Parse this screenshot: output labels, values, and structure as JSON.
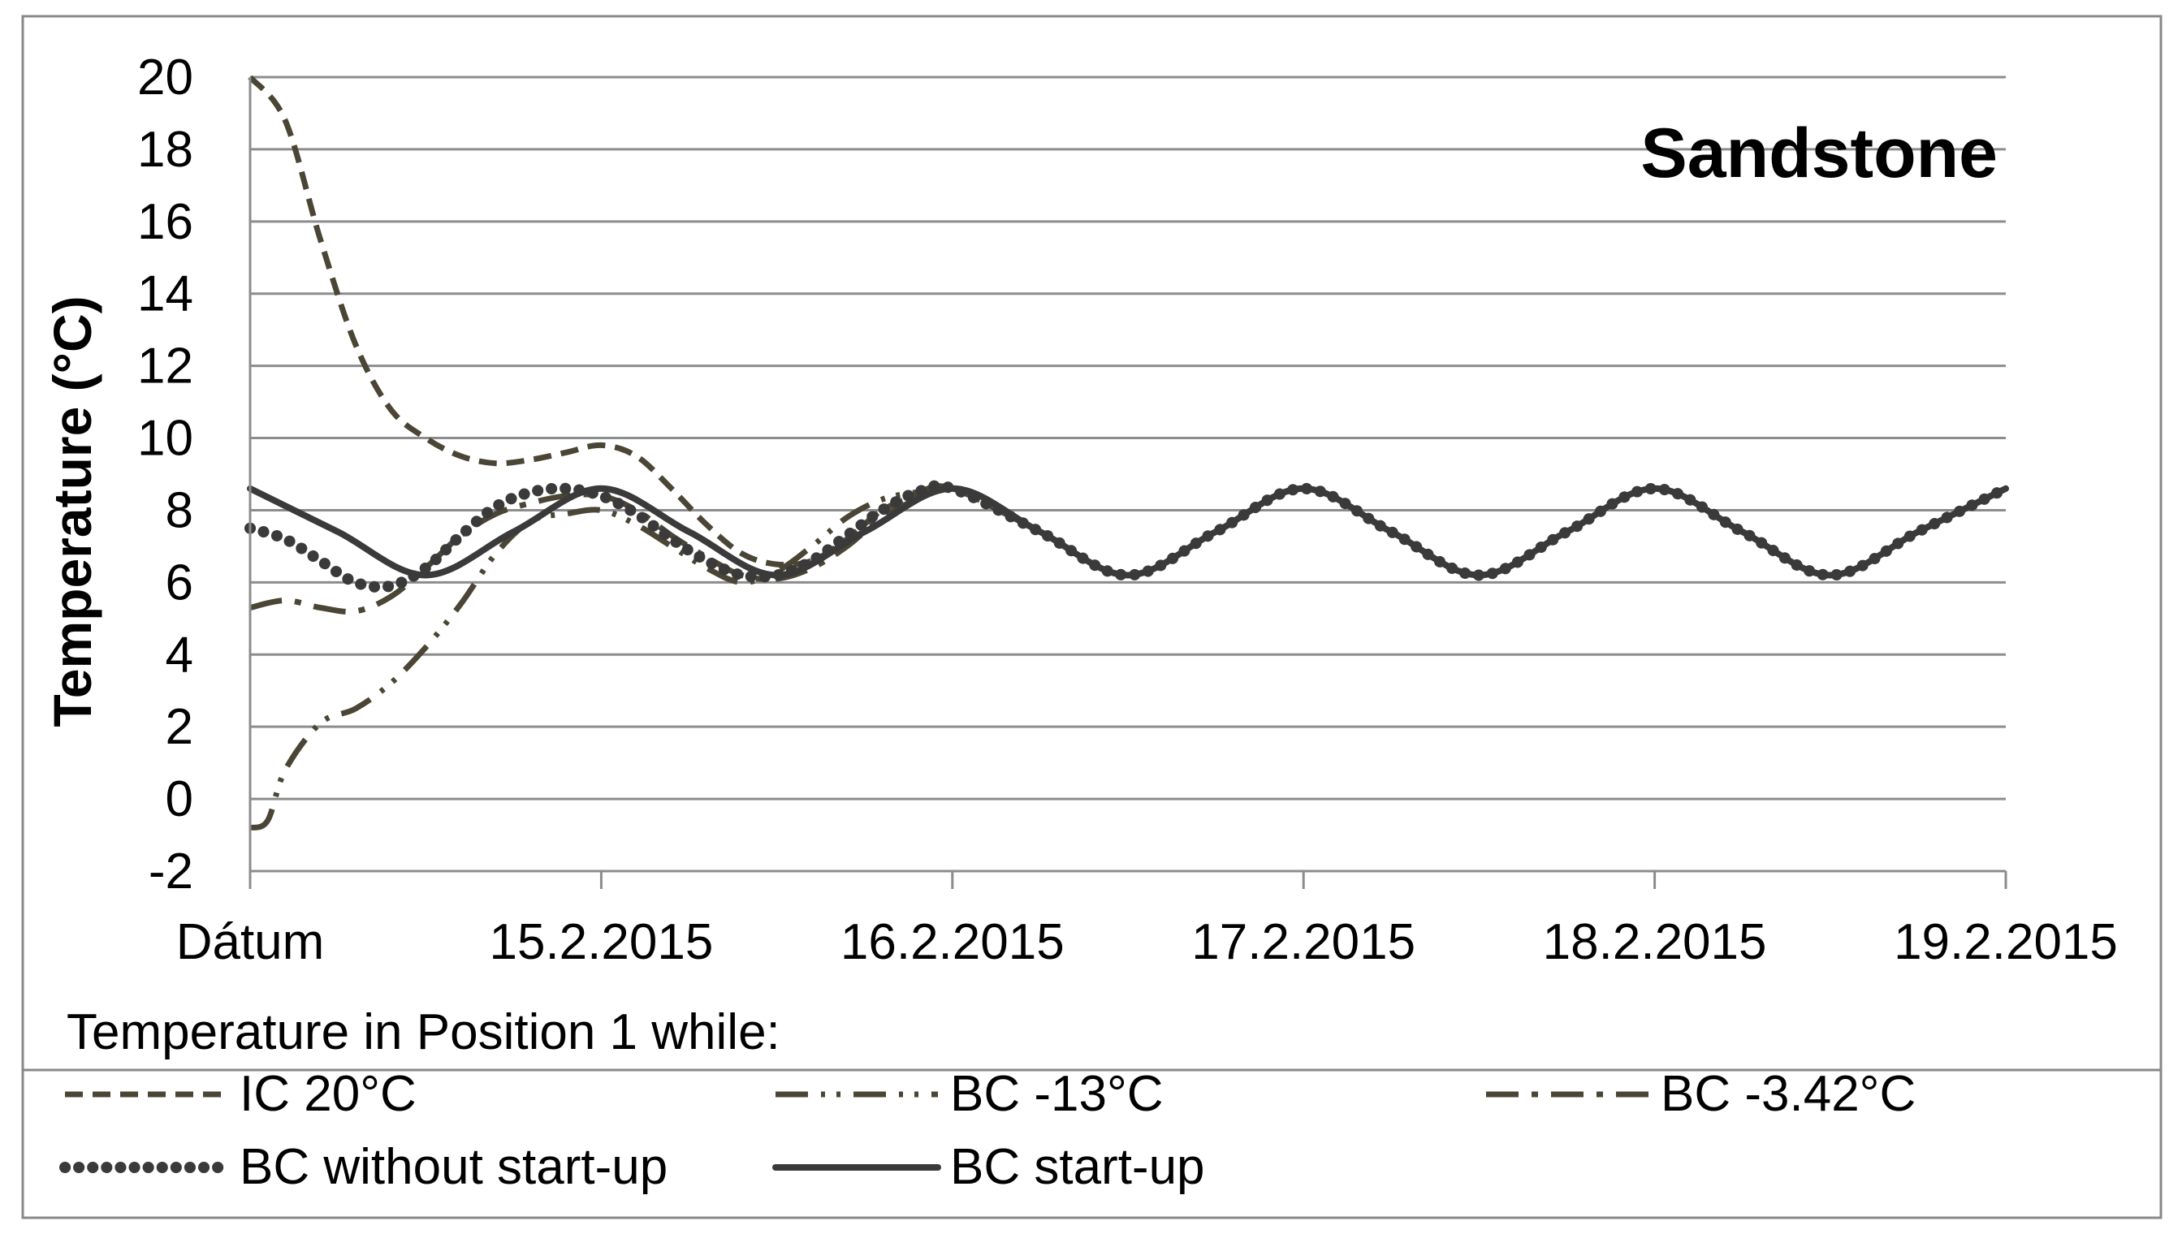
{
  "chart_data": {
    "type": "line",
    "title": "Sandstone",
    "ylabel": "Temperature (°C)",
    "xlabel": "",
    "ylim": [
      -2,
      20
    ],
    "yticks": [
      "20",
      "18",
      "16",
      "14",
      "12",
      "10",
      "8",
      "6",
      "4",
      "2",
      "0",
      "-2"
    ],
    "xticks": [
      "Dátum",
      "15.2.2015",
      "16.2.2015",
      "17.2.2015",
      "18.2.2015",
      "19.2.2015"
    ],
    "legend_title": "Temperature in Position 1 while:",
    "legend_placement": "bottom",
    "grid": true,
    "series": [
      {
        "name": "IC 20°C",
        "style": "dashed",
        "color": "#4a4535",
        "x": [
          0,
          0.1,
          0.2,
          0.3,
          0.4,
          0.5,
          0.6,
          0.7,
          0.8,
          0.9,
          1.0,
          1.1,
          1.2,
          1.3,
          1.4,
          1.5,
          1.6,
          1.7,
          1.8,
          1.9,
          2.0,
          2.25,
          2.5,
          2.75,
          3.0,
          3.25,
          3.5,
          3.75,
          4.0,
          4.25,
          4.5,
          4.75,
          5.0
        ],
        "y": [
          20,
          18.8,
          15.5,
          12.6,
          10.8,
          10.0,
          9.5,
          9.3,
          9.4,
          9.6,
          9.8,
          9.5,
          8.6,
          7.6,
          6.8,
          6.5,
          6.6,
          7.2,
          8.0,
          8.4,
          8.6,
          7.4,
          6.2,
          7.4,
          8.6,
          7.4,
          6.2,
          7.4,
          8.6,
          7.4,
          6.2,
          7.4,
          8.6
        ]
      },
      {
        "name": "BC -13°C",
        "style": "dash-dot-dot",
        "color": "#4a4535",
        "x": [
          0,
          0.05,
          0.1,
          0.2,
          0.3,
          0.4,
          0.5,
          0.6,
          0.7,
          0.8,
          0.9,
          1.0,
          1.1,
          1.2,
          1.3,
          1.4,
          1.5,
          1.6,
          1.7,
          1.8,
          1.9,
          2.0,
          2.25,
          2.5,
          2.75,
          3.0,
          3.25,
          3.5,
          3.75,
          4.0,
          4.25,
          4.5,
          4.75,
          5.0
        ],
        "y": [
          -0.8,
          -0.6,
          0.8,
          2.1,
          2.5,
          3.2,
          4.2,
          5.4,
          6.8,
          7.7,
          7.9,
          8.0,
          7.6,
          7.0,
          6.4,
          6.0,
          6.3,
          7.0,
          7.8,
          8.3,
          8.5,
          8.6,
          7.4,
          6.2,
          7.4,
          8.6,
          7.4,
          6.2,
          7.4,
          8.6,
          7.4,
          6.2,
          7.4,
          8.6
        ]
      },
      {
        "name": "BC -3.42°C",
        "style": "dash-dot",
        "color": "#4a4535",
        "x": [
          0,
          0.1,
          0.2,
          0.3,
          0.4,
          0.5,
          0.6,
          0.7,
          0.8,
          0.9,
          1.0,
          1.1,
          1.2,
          1.3,
          1.4,
          1.5,
          1.6,
          1.7,
          1.8,
          1.9,
          2.0,
          2.25,
          2.5,
          2.75,
          3.0,
          3.25,
          3.5,
          3.75,
          4.0,
          4.25,
          4.5,
          4.75,
          5.0
        ],
        "y": [
          5.3,
          5.5,
          5.3,
          5.2,
          5.6,
          6.4,
          7.3,
          7.9,
          8.2,
          8.4,
          8.4,
          8.0,
          7.3,
          6.7,
          6.2,
          6.1,
          6.4,
          7.0,
          7.8,
          8.3,
          8.6,
          7.4,
          6.2,
          7.4,
          8.6,
          7.4,
          6.2,
          7.4,
          8.6,
          7.4,
          6.2,
          7.4,
          8.6
        ]
      },
      {
        "name": "BC without start-up",
        "style": "dotted",
        "color": "#3a3a3a",
        "x": [
          0,
          0.1,
          0.2,
          0.3,
          0.4,
          0.5,
          0.6,
          0.7,
          0.8,
          0.9,
          1.0,
          1.1,
          1.2,
          1.3,
          1.4,
          1.5,
          1.6,
          1.7,
          1.8,
          1.9,
          2.0,
          2.25,
          2.5,
          2.75,
          3.0,
          3.25,
          3.5,
          3.75,
          4.0,
          4.25,
          4.5,
          4.75,
          5.0
        ],
        "y": [
          7.5,
          7.2,
          6.6,
          6.0,
          5.9,
          6.4,
          7.3,
          8.1,
          8.5,
          8.6,
          8.4,
          7.9,
          7.2,
          6.6,
          6.2,
          6.2,
          6.6,
          7.3,
          8.0,
          8.5,
          8.6,
          7.4,
          6.2,
          7.4,
          8.6,
          7.4,
          6.2,
          7.4,
          8.6,
          7.4,
          6.2,
          7.4,
          8.6
        ]
      },
      {
        "name": "BC start-up",
        "style": "solid",
        "color": "#3a3a3a",
        "x": [
          0,
          0.25,
          0.5,
          0.75,
          1.0,
          1.25,
          1.5,
          1.75,
          2.0,
          2.25,
          2.5,
          2.75,
          3.0,
          3.25,
          3.5,
          3.75,
          4.0,
          4.25,
          4.5,
          4.75,
          5.0
        ],
        "y": [
          8.6,
          7.4,
          6.2,
          7.4,
          8.6,
          7.4,
          6.2,
          7.4,
          8.6,
          7.4,
          6.2,
          7.4,
          8.6,
          7.4,
          6.2,
          7.4,
          8.6,
          7.4,
          6.2,
          7.4,
          8.6
        ]
      }
    ]
  }
}
